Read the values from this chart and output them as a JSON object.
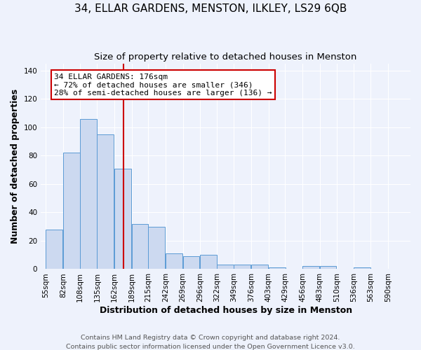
{
  "title": "34, ELLAR GARDENS, MENSTON, ILKLEY, LS29 6QB",
  "subtitle": "Size of property relative to detached houses in Menston",
  "xlabel": "Distribution of detached houses by size in Menston",
  "ylabel": "Number of detached properties",
  "bin_labels": [
    "55sqm",
    "82sqm",
    "108sqm",
    "135sqm",
    "162sqm",
    "189sqm",
    "215sqm",
    "242sqm",
    "269sqm",
    "296sqm",
    "322sqm",
    "349sqm",
    "376sqm",
    "403sqm",
    "429sqm",
    "456sqm",
    "483sqm",
    "510sqm",
    "536sqm",
    "563sqm",
    "590sqm"
  ],
  "bar_values": [
    28,
    82,
    106,
    95,
    71,
    32,
    30,
    11,
    9,
    10,
    3,
    3,
    3,
    1,
    0,
    2,
    2,
    0,
    1,
    0,
    0
  ],
  "bar_color": "#ccd9f0",
  "bar_edge_color": "#5b9bd5",
  "vline_x": 176,
  "vline_color": "#cc0000",
  "annotation_title": "34 ELLAR GARDENS: 176sqm",
  "annotation_line1": "← 72% of detached houses are smaller (346)",
  "annotation_line2": "28% of semi-detached houses are larger (136) →",
  "annotation_box_color": "#ffffff",
  "annotation_box_edge": "#cc0000",
  "ylim": [
    0,
    145
  ],
  "bin_width": 27,
  "footer1": "Contains HM Land Registry data © Crown copyright and database right 2024.",
  "footer2": "Contains public sector information licensed under the Open Government Licence v3.0.",
  "background_color": "#eef2fc",
  "grid_color": "#ffffff",
  "title_fontsize": 11,
  "subtitle_fontsize": 9.5,
  "axis_label_fontsize": 9,
  "tick_fontsize": 7.5,
  "footer_fontsize": 6.8,
  "annotation_fontsize": 8,
  "yticks": [
    0,
    20,
    40,
    60,
    80,
    100,
    120,
    140
  ]
}
